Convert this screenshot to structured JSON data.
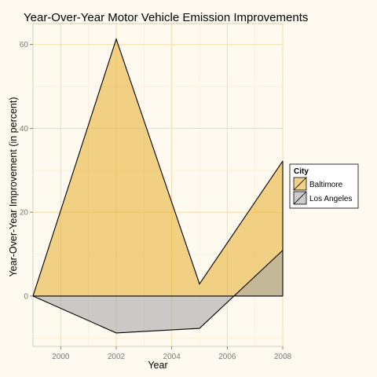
{
  "chart_data": {
    "type": "area",
    "title": "Year-Over-Year Motor Vehicle Emission Improvements",
    "xlabel": "Year",
    "ylabel": "Year-Over-Year Improvement (in percent)",
    "xlim": [
      1999,
      2008
    ],
    "ylim": [
      -12,
      65
    ],
    "x_ticks": [
      2000,
      2002,
      2004,
      2006,
      2008
    ],
    "y_ticks": [
      0,
      20,
      40,
      60
    ],
    "grid": true,
    "legend": {
      "title": "City",
      "position": "right"
    },
    "series": [
      {
        "name": "Baltimore",
        "color": "#e8b33a",
        "x": [
          1999,
          2002,
          2005,
          2008
        ],
        "values": [
          0,
          61.3,
          2.9,
          32.2
        ]
      },
      {
        "name": "Los Angeles",
        "color": "#a8a8a8",
        "x": [
          1999,
          2002,
          2005,
          2008
        ],
        "values": [
          0,
          -8.8,
          -7.7,
          10.9
        ]
      }
    ]
  }
}
